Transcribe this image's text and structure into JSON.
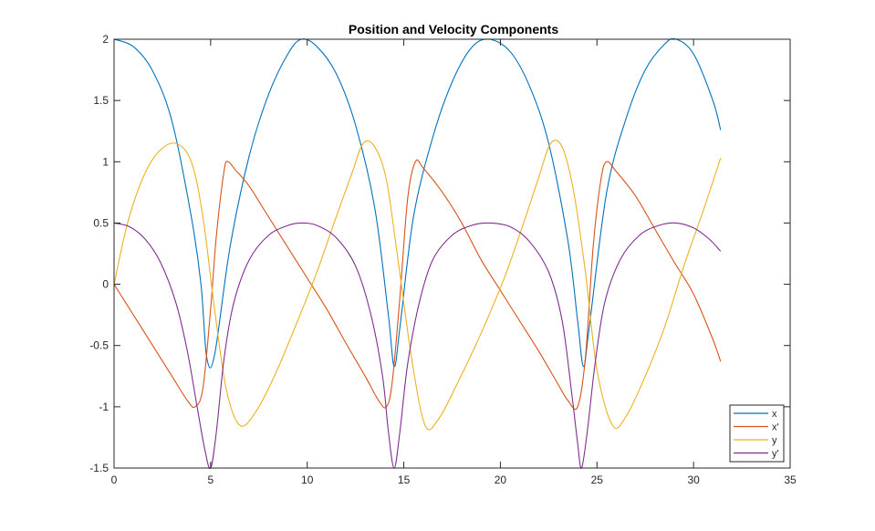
{
  "chart_data": {
    "type": "line",
    "title": "Position and Velocity Components",
    "xlabel": "",
    "ylabel": "",
    "xlim": [
      0,
      35
    ],
    "ylim": [
      -1.5,
      2
    ],
    "xticks": [
      0,
      5,
      10,
      15,
      20,
      25,
      30,
      35
    ],
    "yticks": [
      -1.5,
      -1,
      -0.5,
      0,
      0.5,
      1,
      1.5,
      2
    ],
    "xtick_labels": [
      "0",
      "5",
      "10",
      "15",
      "20",
      "25",
      "30",
      "35"
    ],
    "ytick_labels": [
      "-1.5",
      "-1",
      "-0.5",
      "0",
      "0.5",
      "1",
      "1.5",
      "2"
    ],
    "grid": false,
    "legend_position": "bottom-right",
    "series": [
      {
        "name": "x",
        "color": "#0072BD",
        "x": [
          0,
          1,
          2,
          3,
          4,
          4.5,
          4.8,
          5.2,
          6,
          7,
          8,
          9,
          9.7,
          10.5,
          11.5,
          12.5,
          13.5,
          14.2,
          14.5,
          14.8,
          15.5,
          16.5,
          17.5,
          18.5,
          19.4,
          20.5,
          21.5,
          22.5,
          23.5,
          24,
          24.3,
          24.6,
          25.5,
          26.5,
          27.5,
          28.5,
          29.1,
          30,
          31,
          31.4
        ],
        "y": [
          2,
          1.94,
          1.74,
          1.33,
          0.55,
          0.0,
          -0.6,
          -0.58,
          0.3,
          1.05,
          1.55,
          1.88,
          2,
          1.94,
          1.72,
          1.3,
          0.62,
          -0.25,
          -0.67,
          -0.35,
          0.55,
          1.2,
          1.65,
          1.93,
          2,
          1.9,
          1.62,
          1.15,
          0.35,
          -0.3,
          -0.67,
          -0.35,
          0.75,
          1.35,
          1.75,
          1.96,
          2,
          1.88,
          1.5,
          1.26
        ]
      },
      {
        "name": "x'",
        "color": "#D95319",
        "x": [
          0,
          1,
          2,
          3,
          3.8,
          4.2,
          4.6,
          5,
          5.3,
          5.7,
          5.9,
          6.3,
          7,
          8,
          9,
          10,
          11,
          12,
          13,
          13.7,
          14.1,
          14.4,
          14.8,
          15.2,
          15.6,
          16,
          17,
          18,
          19,
          20,
          21,
          22,
          23,
          23.5,
          24.0,
          24.4,
          24.8,
          25.2,
          25.5,
          26,
          27,
          28,
          29,
          30,
          31,
          31.4
        ],
        "y": [
          0,
          -0.25,
          -0.5,
          -0.75,
          -0.95,
          -1,
          -0.85,
          -0.2,
          0.4,
          0.93,
          1,
          0.93,
          0.8,
          0.55,
          0.3,
          0.05,
          -0.2,
          -0.48,
          -0.75,
          -0.95,
          -1,
          -0.8,
          -0.1,
          0.7,
          1,
          0.95,
          0.75,
          0.5,
          0.2,
          -0.05,
          -0.3,
          -0.55,
          -0.82,
          -0.95,
          -1,
          -0.6,
          0.3,
          0.85,
          1,
          0.92,
          0.72,
          0.45,
          0.18,
          -0.08,
          -0.45,
          -0.63
        ]
      },
      {
        "name": "y",
        "color": "#EDB120",
        "x": [
          0,
          0.7,
          1.5,
          2.3,
          3.2,
          4,
          4.6,
          5.2,
          5.8,
          6.5,
          7.3,
          8.3,
          9.5,
          10.5,
          11.5,
          12.3,
          12.9,
          13.5,
          14.1,
          14.7,
          15.4,
          16.1,
          16.8,
          17.8,
          19,
          20.2,
          21.2,
          22,
          22.6,
          23.2,
          23.8,
          24.4,
          25,
          25.8,
          26.5,
          27.5,
          28.5,
          29.5,
          30.5,
          31.4
        ],
        "y": [
          0,
          0.5,
          0.87,
          1.08,
          1.15,
          1.0,
          0.55,
          -0.2,
          -0.85,
          -1.15,
          -1.05,
          -0.75,
          -0.3,
          0.1,
          0.55,
          0.9,
          1.15,
          1.12,
          0.85,
          0.2,
          -0.6,
          -1.15,
          -1.1,
          -0.8,
          -0.4,
          0.05,
          0.5,
          0.88,
          1.15,
          1.12,
          0.75,
          0.1,
          -0.7,
          -1.15,
          -1.08,
          -0.75,
          -0.35,
          0.15,
          0.6,
          1.03
        ]
      },
      {
        "name": "y'",
        "color": "#7E2F8E",
        "x": [
          0,
          0.8,
          1.6,
          2.4,
          3.2,
          3.8,
          4.3,
          4.7,
          5.0,
          5.3,
          5.7,
          6.2,
          7,
          8,
          9,
          9.7,
          10.5,
          11.5,
          12.5,
          13.3,
          13.9,
          14.2,
          14.5,
          14.8,
          15.2,
          15.8,
          16.5,
          17.5,
          18.5,
          19.4,
          20.5,
          21.5,
          22.5,
          23.2,
          23.7,
          24.0,
          24.2,
          24.5,
          24.9,
          25.4,
          26.2,
          27.2,
          28.2,
          29.1,
          30,
          30.8,
          31.4
        ],
        "y": [
          0.5,
          0.47,
          0.37,
          0.18,
          -0.15,
          -0.55,
          -1.0,
          -1.35,
          -1.5,
          -1.2,
          -0.6,
          -0.15,
          0.2,
          0.4,
          0.48,
          0.5,
          0.48,
          0.38,
          0.15,
          -0.25,
          -0.75,
          -1.2,
          -1.5,
          -1.2,
          -0.65,
          -0.15,
          0.2,
          0.4,
          0.48,
          0.5,
          0.47,
          0.35,
          0.1,
          -0.3,
          -0.9,
          -1.3,
          -1.5,
          -1.2,
          -0.65,
          -0.15,
          0.2,
          0.4,
          0.48,
          0.5,
          0.46,
          0.37,
          0.27
        ]
      }
    ]
  }
}
